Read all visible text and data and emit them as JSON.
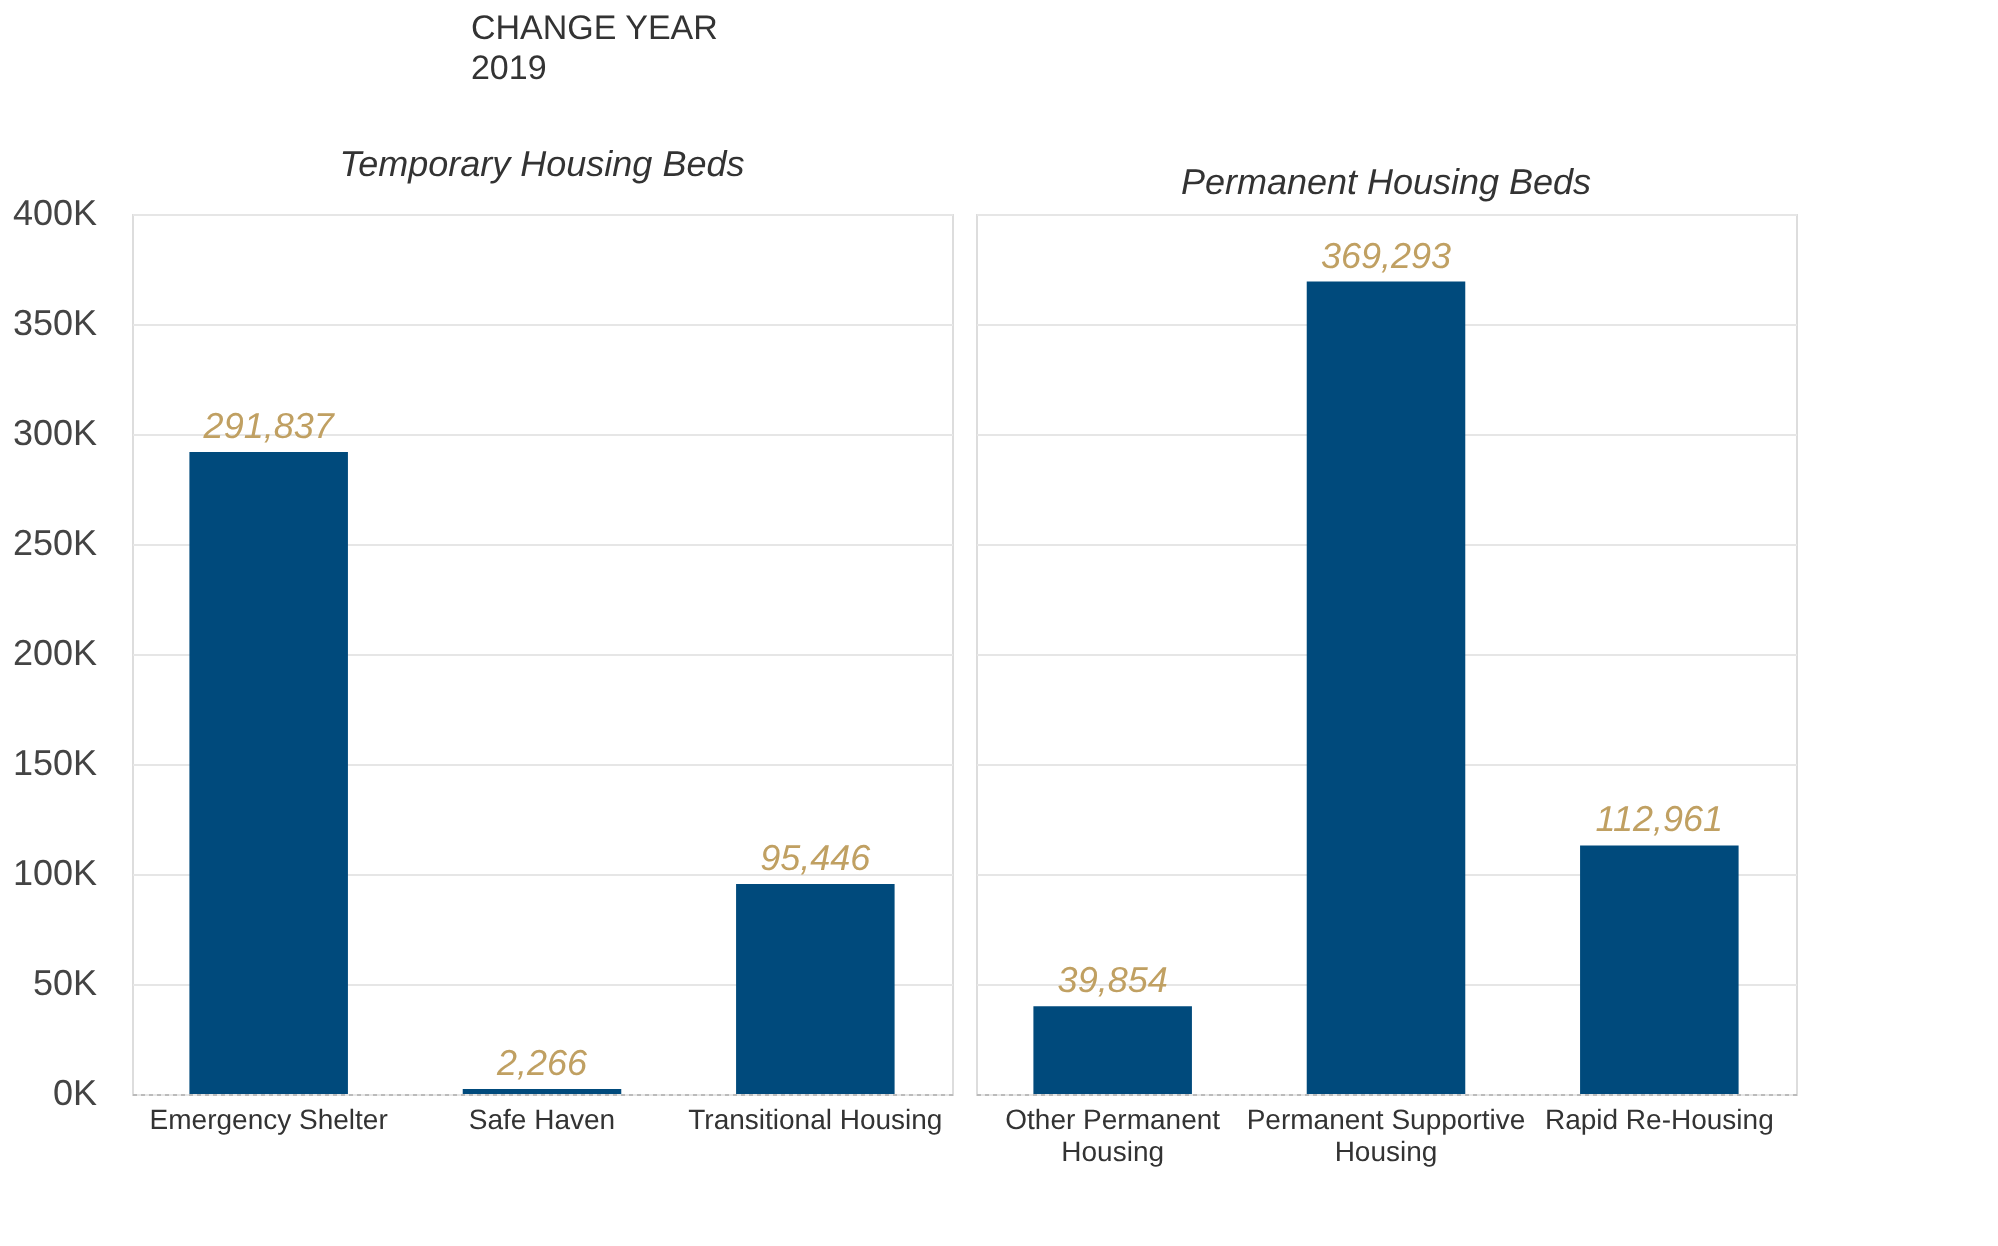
{
  "chart_data": [
    {
      "type": "bar",
      "title": "Temporary Housing Beds",
      "annotations": [
        "CHANGE YEAR",
        "2019"
      ],
      "categories": [
        "Emergency Shelter",
        "Safe Haven",
        "Transitional Housing"
      ],
      "values": [
        291837,
        2266,
        95446
      ],
      "value_labels": [
        "291,837",
        "2,266",
        "95,446"
      ],
      "color": "#004a7c",
      "ylim": [
        0,
        400000
      ],
      "yticks": [
        {
          "value": 0,
          "label": "0K"
        },
        {
          "value": 50000,
          "label": "50K"
        },
        {
          "value": 100000,
          "label": "100K"
        },
        {
          "value": 150000,
          "label": "150K"
        },
        {
          "value": 200000,
          "label": "200K"
        },
        {
          "value": 250000,
          "label": "250K"
        },
        {
          "value": 300000,
          "label": "300K"
        },
        {
          "value": 350000,
          "label": "350K"
        },
        {
          "value": 400000,
          "label": "400K"
        }
      ],
      "grid": "y"
    },
    {
      "type": "bar",
      "title": "Permanent Housing Beds",
      "categories": [
        "Other Permanent Housing",
        "Permanent Supportive Housing",
        "Rapid Re-Housing"
      ],
      "values": [
        39854,
        369293,
        112961
      ],
      "value_labels": [
        "39,854",
        "369,293",
        "112,961"
      ],
      "color": "#004a7c",
      "ylim": [
        0,
        400000
      ],
      "yticks": [
        0,
        50000,
        100000,
        150000,
        200000,
        250000,
        300000,
        350000,
        400000
      ],
      "grid": "y",
      "tick_labels": "x"
    }
  ]
}
